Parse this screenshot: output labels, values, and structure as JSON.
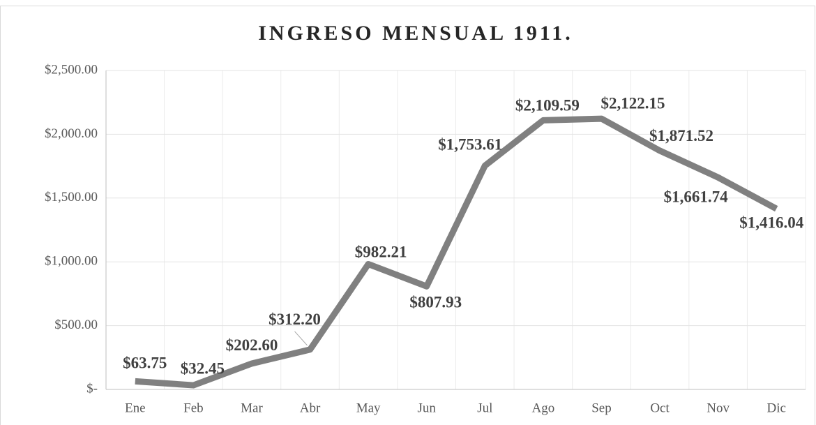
{
  "chart_data": {
    "type": "line",
    "title": "INGRESO MENSUAL 1911.",
    "categories": [
      "Ene",
      "Feb",
      "Mar",
      "Abr",
      "May",
      "Jun",
      "Jul",
      "Ago",
      "Sep",
      "Oct",
      "Nov",
      "Dic"
    ],
    "series": [
      {
        "name": "Ingreso",
        "color": "#808080",
        "values": [
          63.75,
          32.45,
          202.6,
          312.2,
          982.21,
          807.93,
          1753.61,
          2109.59,
          2122.15,
          1871.52,
          1661.74,
          1416.04
        ],
        "value_labels": [
          "$63.75",
          "$32.45",
          "$202.60",
          "$312.20",
          "$982.21",
          "$807.93",
          "$1,753.61",
          "$2,109.59",
          "$2,122.15",
          "$1,871.52",
          "$1,661.74",
          "$1,416.04"
        ]
      }
    ],
    "ylim": [
      0,
      2500
    ],
    "yticks": [
      {
        "value": 0,
        "label": "$-"
      },
      {
        "value": 500,
        "label": "$500.00"
      },
      {
        "value": 1000,
        "label": "$1,000.00"
      },
      {
        "value": 1500,
        "label": "$1,500.00"
      },
      {
        "value": 2000,
        "label": "$2,000.00"
      },
      {
        "value": 2500,
        "label": "$2,500.00"
      }
    ],
    "grid": true
  }
}
